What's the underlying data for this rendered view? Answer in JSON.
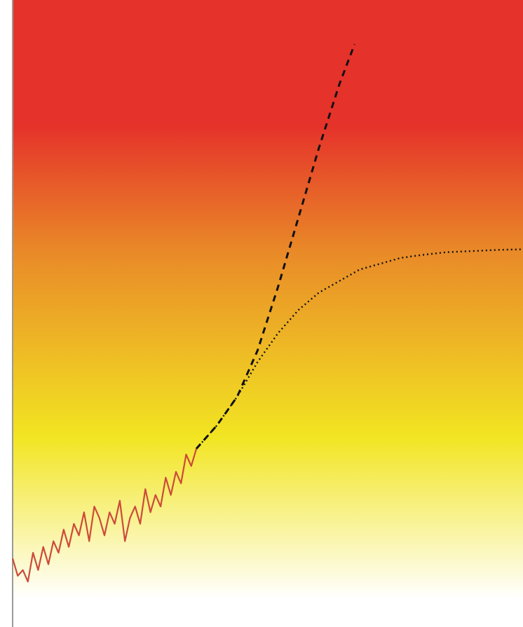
{
  "chart_data": {
    "type": "line",
    "title": "",
    "xlabel": "",
    "ylabel": "",
    "grid": false,
    "legend": "none",
    "xlim": [
      0,
      100
    ],
    "ylim": [
      0,
      100
    ],
    "background_gradient": {
      "direction": "vertical",
      "stops": [
        {
          "value": 100,
          "color": "#e5322a"
        },
        {
          "value": 82,
          "color": "#e5322a"
        },
        {
          "value": 60,
          "color": "#e98a28"
        },
        {
          "value": 28,
          "color": "#f2e522"
        },
        {
          "value": 0,
          "color": "#ffffff"
        }
      ]
    },
    "series": [
      {
        "style": "solid",
        "color": "#cc4a3a",
        "x": [
          0,
          1,
          2,
          3,
          4,
          5,
          6,
          7,
          8,
          9,
          10,
          11,
          12,
          13,
          14,
          15,
          16,
          17,
          18,
          19,
          20,
          21,
          22,
          23,
          24,
          25,
          26,
          27,
          28,
          29,
          30,
          31,
          32,
          33,
          34,
          35,
          36
        ],
        "y": [
          7,
          4,
          5,
          3,
          8,
          5,
          9,
          6,
          10,
          8,
          12,
          9,
          13,
          11,
          15,
          10,
          16,
          14,
          11,
          15,
          13,
          17,
          10,
          14,
          16,
          13,
          19,
          15,
          18,
          16,
          21,
          18,
          22,
          20,
          25,
          23,
          26
        ]
      },
      {
        "style": "dashed",
        "color": "#111111",
        "x": [
          36,
          40,
          44,
          48,
          52,
          56,
          60,
          64,
          67
        ],
        "y": [
          26,
          30,
          35,
          43,
          54,
          66,
          78,
          89,
          96
        ]
      },
      {
        "style": "dotted",
        "color": "#111111",
        "x": [
          36,
          40,
          44,
          48,
          52,
          56,
          60,
          64,
          68,
          72,
          76,
          80,
          85,
          90,
          95,
          100
        ],
        "y": [
          26,
          30,
          35,
          41,
          46,
          50,
          53,
          55,
          57,
          58,
          59,
          59.5,
          60,
          60.2,
          60.4,
          60.5
        ]
      }
    ]
  }
}
